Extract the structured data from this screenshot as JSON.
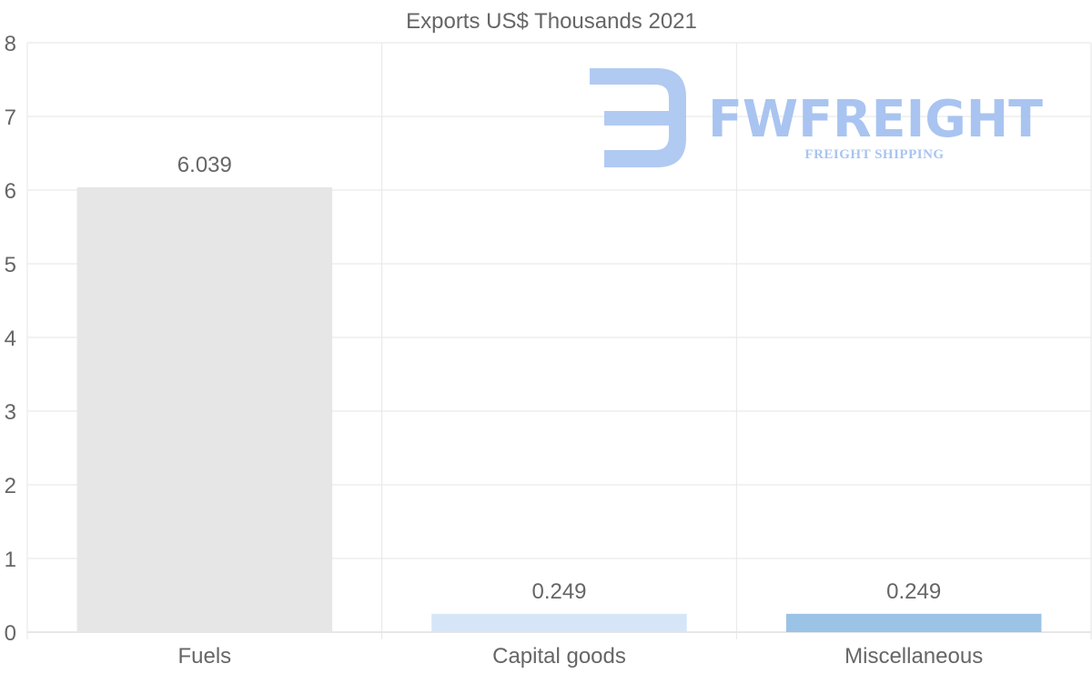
{
  "chart_data": {
    "type": "bar",
    "title": "Exports US$ Thousands 2021",
    "categories": [
      "Fuels",
      "Capital goods",
      "Miscellaneous"
    ],
    "values": [
      6.039,
      0.249,
      0.249
    ],
    "data_labels": [
      "6.039",
      "0.249",
      "0.249"
    ],
    "bar_colors": [
      "#e6e6e6",
      "#d6e6f8",
      "#9bc3e6"
    ],
    "xlabel": "",
    "ylabel": "",
    "ylim": [
      0,
      8
    ],
    "yticks": [
      "0",
      "1",
      "2",
      "3",
      "4",
      "5",
      "6",
      "7",
      "8"
    ],
    "grid": true,
    "legend": "none"
  },
  "watermark": {
    "brand": "FWFREIGHT",
    "tagline": "FREIGHT SHIPPING",
    "color": "#a9c4f0"
  }
}
